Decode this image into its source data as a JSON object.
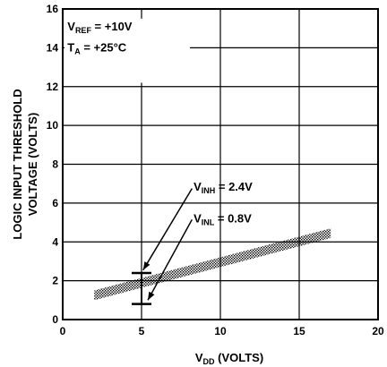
{
  "chart_data": {
    "type": "line",
    "title": "",
    "xlabel": {
      "main": "V",
      "sub": "DD",
      "rest": " (VOLTS)"
    },
    "ylabel": [
      "LOGIC INPUT THRESHOLD",
      "VOLTAGE (VOLTS)"
    ],
    "xlim": [
      0,
      20
    ],
    "ylim": [
      0,
      16
    ],
    "xticks": [
      0,
      5,
      10,
      15,
      20
    ],
    "yticks": [
      0,
      2,
      4,
      6,
      8,
      10,
      12,
      14,
      16
    ],
    "grid": true,
    "conditions": [
      {
        "main": "V",
        "sub": "REF",
        "rest": " = +10V"
      },
      {
        "main": "T",
        "sub": "A",
        "rest": " = +25°C"
      }
    ],
    "band": {
      "x": [
        2,
        17
      ],
      "y_center": [
        1.25,
        4.45
      ],
      "half_width": 0.25
    },
    "levels": [
      {
        "main": "V",
        "sub": "INH",
        "rest": " = 2.4V",
        "x": 5,
        "y": 2.4
      },
      {
        "main": "V",
        "sub": "INL",
        "rest": " = 0.8V",
        "x": 5,
        "y": 0.8
      }
    ]
  }
}
